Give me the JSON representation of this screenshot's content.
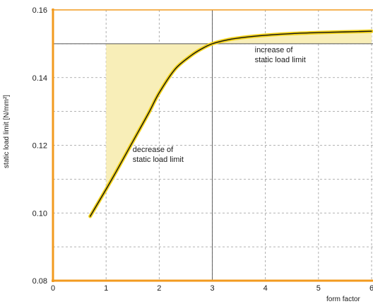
{
  "chart_data": {
    "type": "line",
    "ylabel": "static load  limit [N/mm²]",
    "xlabel": "form factor",
    "xlim": [
      0,
      6
    ],
    "ylim": [
      0.08,
      0.16
    ],
    "x_ticks": [
      "0",
      "1",
      "2",
      "3",
      "4",
      "5",
      "6"
    ],
    "y_ticks": [
      "0.08",
      "0.10",
      "0.12",
      "0.14",
      "0.16"
    ],
    "grid": true,
    "reference": {
      "x": 3,
      "y": 0.15
    },
    "series": [
      {
        "x": [
          0.7,
          1.0,
          1.2,
          1.5,
          1.8,
          2.0,
          2.3,
          2.6,
          2.8,
          3.0,
          3.3,
          3.6,
          4.0,
          4.5,
          5.0,
          5.5,
          6.0
        ],
        "values": [
          0.099,
          0.107,
          0.1125,
          0.121,
          0.1295,
          0.1355,
          0.1425,
          0.1465,
          0.1485,
          0.15,
          0.1512,
          0.1519,
          0.1525,
          0.153,
          0.1533,
          0.1535,
          0.1537
        ]
      }
    ],
    "annotations": [
      {
        "text_lines": [
          "decrease of",
          "static load limit"
        ],
        "x": 1.5,
        "y": 0.118
      },
      {
        "text_lines": [
          "increase of",
          "static load limit"
        ],
        "x": 3.8,
        "y": 0.1475
      }
    ],
    "colors": {
      "axis": "#f29a1e",
      "fill": "#f8eeb8",
      "curve_halo": "#f2d21a",
      "curve": "#111111",
      "grid": "#9a9a9a",
      "ref": "#555555"
    }
  }
}
